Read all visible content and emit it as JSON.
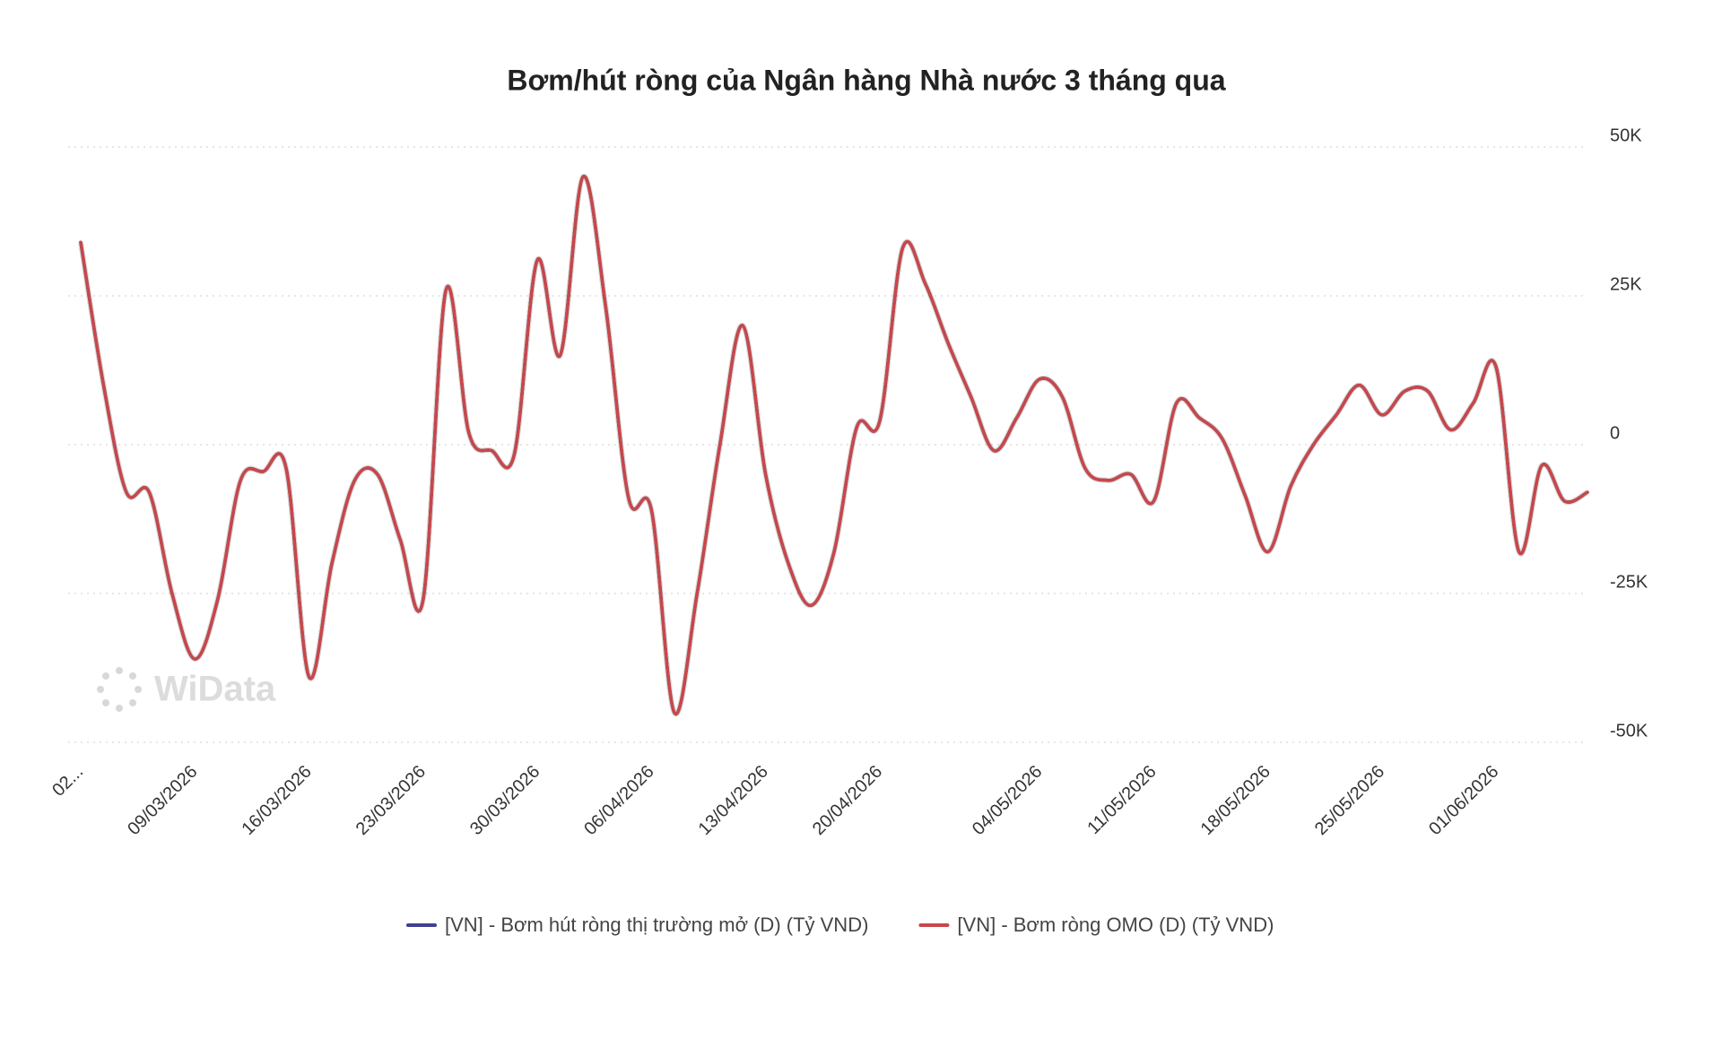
{
  "chart_data": {
    "type": "line",
    "title": "Bơm/hút ròng của Ngân hàng Nhà nước 3 tháng qua",
    "watermark": "WiData",
    "categories": [
      "02...",
      null,
      null,
      null,
      null,
      "09/03/2026",
      null,
      null,
      null,
      null,
      "16/03/2026",
      null,
      null,
      null,
      null,
      "23/03/2026",
      null,
      null,
      null,
      null,
      "30/03/2026",
      null,
      null,
      null,
      null,
      "06/04/2026",
      null,
      null,
      null,
      null,
      "13/04/2026",
      null,
      null,
      null,
      null,
      "20/04/2026",
      null,
      null,
      null,
      null,
      null,
      null,
      "04/05/2026",
      null,
      null,
      null,
      null,
      "11/05/2026",
      null,
      null,
      null,
      null,
      "18/05/2026",
      null,
      null,
      null,
      null,
      "25/05/2026",
      null,
      null,
      null,
      null,
      "01/06/2026",
      null,
      null,
      null,
      null
    ],
    "series": [
      {
        "name": "[VN] - Bơm hút ròng thị trường mở (D) (Tỷ VND)",
        "color": "#3d3f91",
        "values": [
          34000,
          10000,
          -8000,
          -8000,
          -25000,
          -36000,
          -26000,
          -6000,
          -4500,
          -4000,
          -39000,
          -20000,
          -6000,
          -5000,
          -16000,
          -26000,
          26000,
          2000,
          -1000,
          -1500,
          31000,
          15000,
          45000,
          23000,
          -9000,
          -11000,
          -45000,
          -25000,
          0,
          20000,
          -5000,
          -20000,
          -27000,
          -18000,
          3000,
          4000,
          33000,
          27000,
          17000,
          8000,
          -1000,
          4500,
          11000,
          8000,
          -4000,
          -6000,
          -5000,
          -9500,
          7000,
          4500,
          1000,
          -8500,
          -18000,
          -7000,
          0,
          5000,
          10000,
          5000,
          9000,
          9000,
          2500,
          7000,
          13000,
          -18000,
          -3500,
          -9500,
          -8000
        ]
      },
      {
        "name": "[VN] - Bơm ròng OMO (D) (Tỷ VND)",
        "color": "#c8474a",
        "values": [
          34000,
          10000,
          -8000,
          -8000,
          -25000,
          -36000,
          -26000,
          -6000,
          -4500,
          -4000,
          -39000,
          -20000,
          -6000,
          -5000,
          -16000,
          -26000,
          26000,
          2000,
          -1000,
          -1500,
          31000,
          15000,
          45000,
          23000,
          -9000,
          -11000,
          -45000,
          -25000,
          0,
          20000,
          -5000,
          -20000,
          -27000,
          -18000,
          3000,
          4000,
          33000,
          27000,
          17000,
          8000,
          -1000,
          4500,
          11000,
          8000,
          -4000,
          -6000,
          -5000,
          -9500,
          7000,
          4500,
          1000,
          -8500,
          -18000,
          -7000,
          0,
          5000,
          10000,
          5000,
          9000,
          9000,
          2500,
          7000,
          13000,
          -18000,
          -3500,
          -9500,
          -8000
        ]
      }
    ],
    "ylim": [
      -50000,
      50000
    ],
    "yticks": [
      {
        "value": -50000,
        "label": "-50K"
      },
      {
        "value": -25000,
        "label": "-25K"
      },
      0,
      {
        "value": 25000,
        "label": "25K"
      },
      {
        "value": 50000,
        "label": "50K"
      }
    ],
    "grid": true,
    "legend": "bottom"
  }
}
